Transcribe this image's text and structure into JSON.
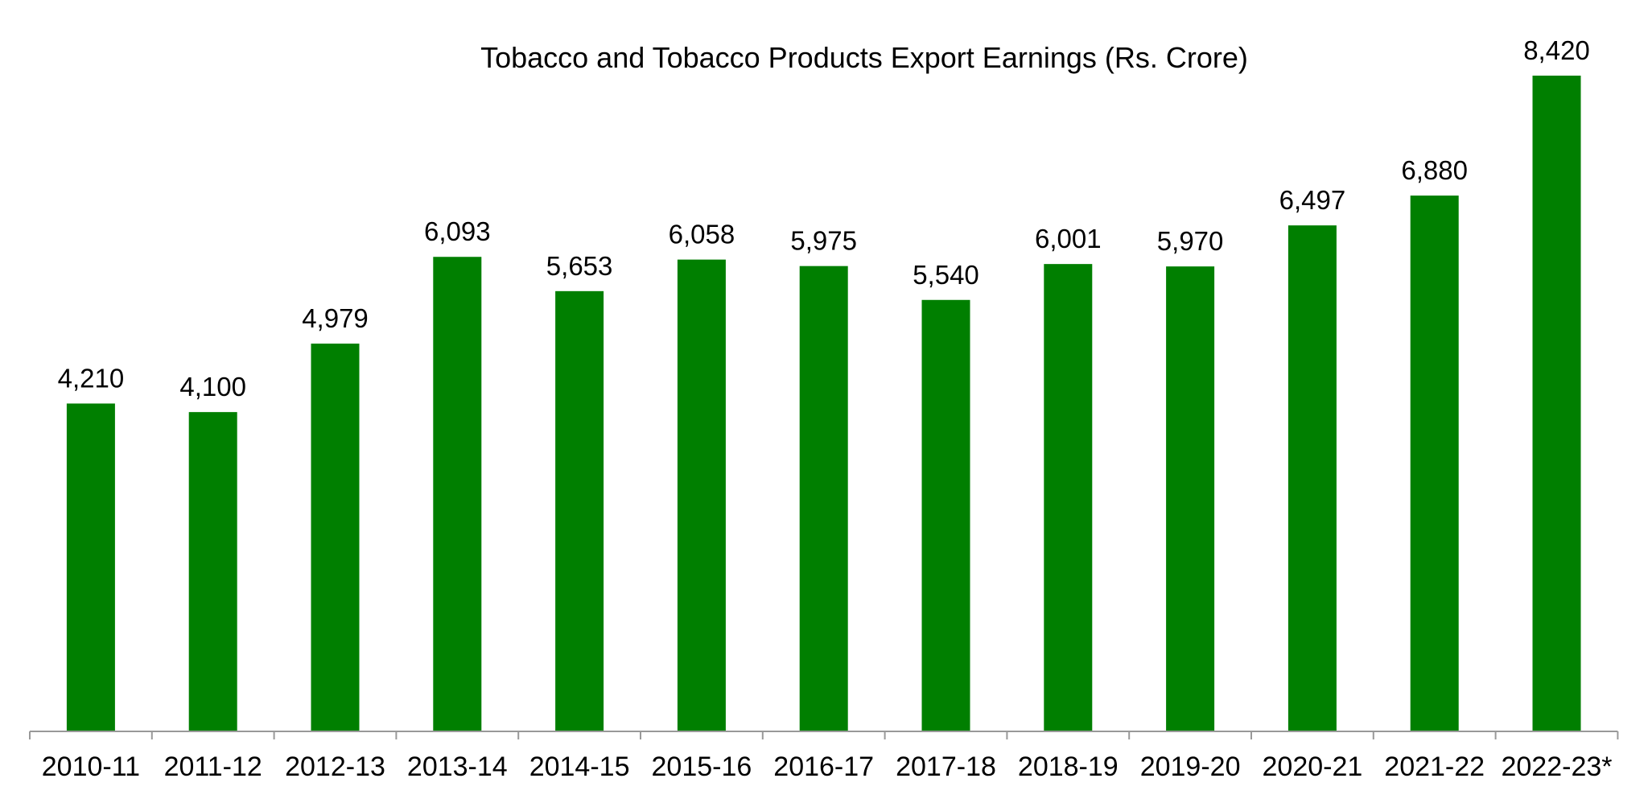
{
  "chart_data": {
    "type": "bar",
    "title": "Tobacco and Tobacco Products Export Earnings (Rs. Crore)",
    "xlabel": "",
    "ylabel": "",
    "categories": [
      "2010-11",
      "2011-12",
      "2012-13",
      "2013-14",
      "2014-15",
      "2015-16",
      "2016-17",
      "2017-18",
      "2018-19",
      "2019-20",
      "2020-21",
      "2021-22",
      "2022-23*"
    ],
    "values": [
      4210,
      4100,
      4979,
      6093,
      5653,
      6058,
      5975,
      5540,
      6001,
      5970,
      6497,
      6880,
      8420
    ],
    "data_labels": [
      "4,210",
      "4,100",
      "4,979",
      "6,093",
      "5,653",
      "6,058",
      "5,975",
      "5,540",
      "6,001",
      "5,970",
      "6,497",
      "6,880",
      "8,420"
    ],
    "bar_color": "#007F00",
    "grid": false,
    "legend": "none"
  }
}
